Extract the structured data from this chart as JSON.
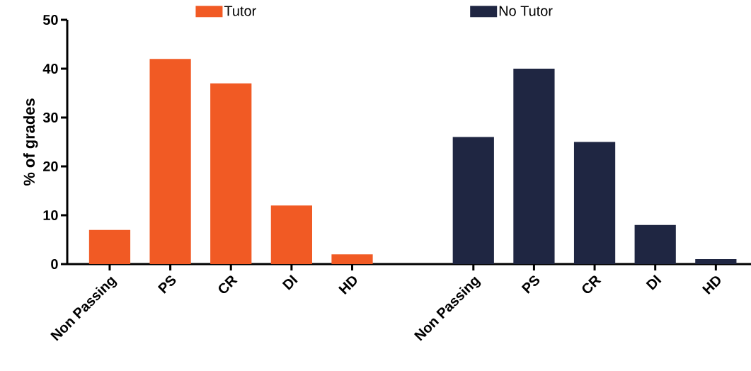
{
  "chart_data": {
    "type": "bar",
    "ylabel": "% of grades",
    "categories": [
      "Non Passing",
      "PS",
      "CR",
      "DI",
      "HD",
      null,
      "Non Passing",
      "PS",
      "CR",
      "DI",
      "HD"
    ],
    "series": [
      {
        "name": "Tutor",
        "color": "#f15a24",
        "values": [
          7,
          42,
          37,
          12,
          2,
          null,
          null,
          null,
          null,
          null,
          null
        ]
      },
      {
        "name": "No Tutor",
        "color": "#1f2642",
        "values": [
          null,
          null,
          null,
          null,
          null,
          null,
          26,
          40,
          25,
          8,
          1
        ]
      }
    ],
    "ylim": [
      0,
      50
    ],
    "yticks": [
      0,
      10,
      20,
      30,
      40,
      50
    ],
    "legend": "top"
  }
}
